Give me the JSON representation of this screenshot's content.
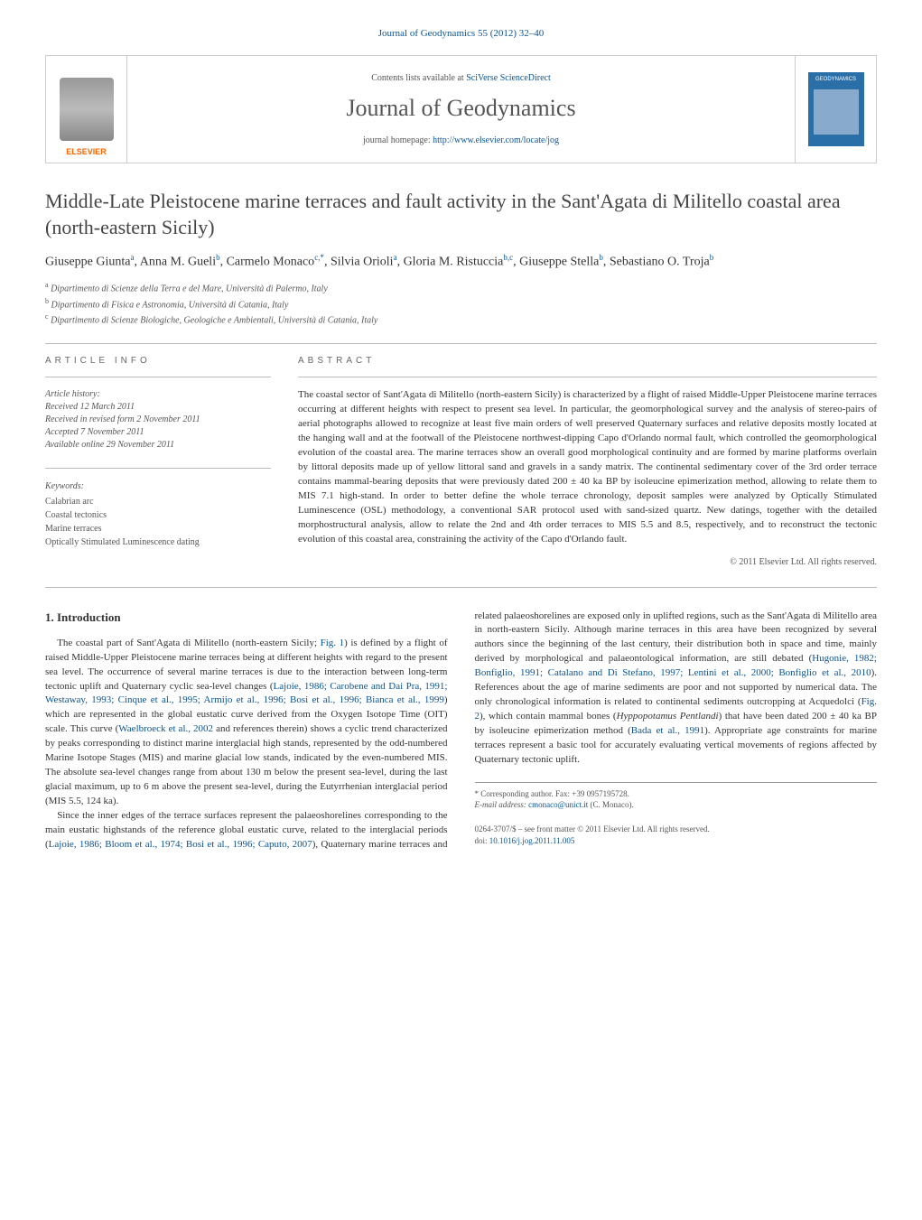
{
  "journal_ref": {
    "text_prefix": "Journal of Geodynamics 55 (2012) 32–40",
    "link_color": "#0b5394"
  },
  "header": {
    "publisher_label": "ELSEVIER",
    "contents_prefix": "Contents lists available at ",
    "contents_link": "SciVerse ScienceDirect",
    "journal_title": "Journal of Geodynamics",
    "homepage_prefix": "journal homepage: ",
    "homepage_link": "http://www.elsevier.com/locate/jog",
    "cover_label": "GEODYNAMICS"
  },
  "article": {
    "title": "Middle-Late Pleistocene marine terraces and fault activity in the Sant'Agata di Militello coastal area (north-eastern Sicily)",
    "authors_html": "Giuseppe Giunta<sup>a</sup>, Anna M. Gueli<sup>b</sup>, Carmelo Monaco<sup>c,*</sup>, Silvia Orioli<sup>a</sup>, Gloria M. Ristuccia<sup>b,c</sup>, Giuseppe Stella<sup>b</sup>, Sebastiano O. Troja<sup>b</sup>",
    "affiliations": [
      {
        "sup": "a",
        "text": "Dipartimento di Scienze della Terra e del Mare, Università di Palermo, Italy"
      },
      {
        "sup": "b",
        "text": "Dipartimento di Fisica e Astronomia, Università di Catania, Italy"
      },
      {
        "sup": "c",
        "text": "Dipartimento di Scienze Biologiche, Geologiche e Ambientali, Università di Catania, Italy"
      }
    ]
  },
  "info": {
    "section_label": "article info",
    "history_label": "Article history:",
    "history": [
      "Received 12 March 2011",
      "Received in revised form 2 November 2011",
      "Accepted 7 November 2011",
      "Available online 29 November 2011"
    ],
    "keywords_label": "Keywords:",
    "keywords": [
      "Calabrian arc",
      "Coastal tectonics",
      "Marine terraces",
      "Optically Stimulated Luminescence dating"
    ]
  },
  "abstract": {
    "section_label": "abstract",
    "text": "The coastal sector of Sant'Agata di Militello (north-eastern Sicily) is characterized by a flight of raised Middle-Upper Pleistocene marine terraces occurring at different heights with respect to present sea level. In particular, the geomorphological survey and the analysis of stereo-pairs of aerial photographs allowed to recognize at least five main orders of well preserved Quaternary surfaces and relative deposits mostly located at the hanging wall and at the footwall of the Pleistocene northwest-dipping Capo d'Orlando normal fault, which controlled the geomorphological evolution of the coastal area. The marine terraces show an overall good morphological continuity and are formed by marine platforms overlain by littoral deposits made up of yellow littoral sand and gravels in a sandy matrix. The continental sedimentary cover of the 3rd order terrace contains mammal-bearing deposits that were previously dated 200 ± 40 ka BP by isoleucine epimerization method, allowing to relate them to MIS 7.1 high-stand. In order to better define the whole terrace chronology, deposit samples were analyzed by Optically Stimulated Luminescence (OSL) methodology, a conventional SAR protocol used with sand-sized quartz. New datings, together with the detailed morphostructural analysis, allow to relate the 2nd and 4th order terraces to MIS 5.5 and 8.5, respectively, and to reconstruct the tectonic evolution of this coastal area, constraining the activity of the Capo d'Orlando fault.",
    "copyright": "© 2011 Elsevier Ltd. All rights reserved."
  },
  "body": {
    "intro_heading": "1. Introduction",
    "paragraphs": [
      "The coastal part of Sant'Agata di Militello (north-eastern Sicily; <a href='#'>Fig. 1</a>) is defined by a flight of raised Middle-Upper Pleistocene marine terraces being at different heights with regard to the present sea level. The occurrence of several marine terraces is due to the interaction between long-term tectonic uplift and Quaternary cyclic sea-level changes (<a href='#'>Lajoie, 1986; Carobene and Dai Pra, 1991; Westaway, 1993; Cinque et al., 1995; Armijo et al., 1996; Bosi et al., 1996; Bianca et al., 1999</a>) which are represented in the global eustatic curve derived from the Oxygen Isotope Time (OIT) scale. This curve (<a href='#'>Waelbroeck et al., 2002</a> and references therein) shows a cyclic trend characterized by peaks corresponding to distinct marine interglacial high stands, represented by the odd-numbered Marine Isotope Stages (MIS) and marine glacial low stands, indicated by the even-numbered MIS. The absolute sea-level changes range from about 130 m below the present sea-level, during the last glacial maximum, up to 6 m above the present sea-level, during the Eutyrrhenian interglacial period (MIS 5.5, 124 ka).",
      "Since the inner edges of the terrace surfaces represent the palaeoshorelines corresponding to the main eustatic highstands of the reference global eustatic curve, related to the interglacial periods (<a href='#'>Lajoie, 1986; Bloom et al., 1974; Bosi et al., 1996; Caputo, 2007</a>), Quaternary marine terraces and related palaeoshorelines are exposed only in uplifted regions, such as the Sant'Agata di Militello area in north-eastern Sicily. Although marine terraces in this area have been recognized by several authors since the beginning of the last century, their distribution both in space and time, mainly derived by morphological and palaeontological information, are still debated (<a href='#'>Hugonie, 1982; Bonfiglio, 1991; Catalano and Di Stefano, 1997; Lentini et al., 2000; Bonfiglio et al., 2010</a>). References about the age of marine sediments are poor and not supported by numerical data. The only chronological information is related to continental sediments outcropping at Acquedolci (<a href='#'>Fig. 2</a>), which contain mammal bones (<em>Hyppopotamus Pentlandi</em>) that have been dated 200 ± 40 ka BP by isoleucine epimerization method (<a href='#'>Bada et al., 1991</a>). Appropriate age constraints for marine terraces represent a basic tool for accurately evaluating vertical movements of regions affected by Quaternary tectonic uplift."
    ]
  },
  "footnote": {
    "corresp_label": "* Corresponding author. Fax: +39 0957195728.",
    "email_label": "E-mail address: ",
    "email": "cmonaco@unict.it",
    "email_suffix": " (C. Monaco)."
  },
  "bottom": {
    "issn_line": "0264-3707/$ – see front matter © 2011 Elsevier Ltd. All rights reserved.",
    "doi_prefix": "doi:",
    "doi": "10.1016/j.jog.2011.11.005"
  },
  "colors": {
    "link": "#0b5394",
    "text": "#333333",
    "muted": "#555555",
    "border": "#cccccc",
    "cover_bg": "#2b6fa8"
  },
  "typography": {
    "base_fontsize": 13,
    "title_fontsize": 22,
    "journal_title_fontsize": 26,
    "abstract_fontsize": 11,
    "body_fontsize": 11,
    "small_fontsize": 10,
    "footnote_fontsize": 9
  }
}
